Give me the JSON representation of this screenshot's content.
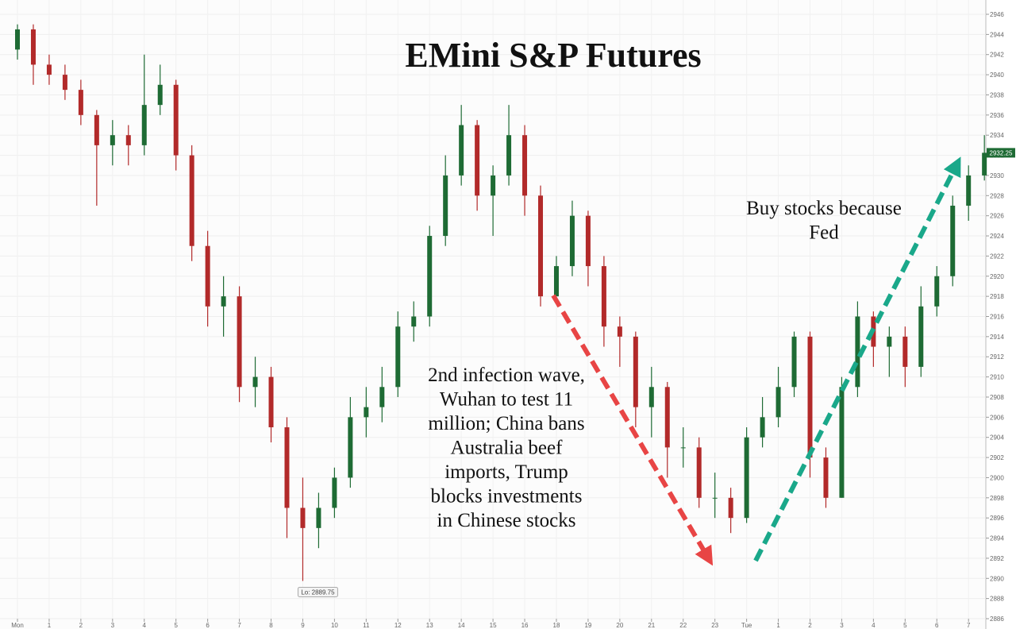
{
  "chart_data": {
    "type": "candlestick",
    "title": "EMini S&P Futures",
    "annotations": [
      {
        "lines": [
          "2nd infection wave,",
          "Wuhan to test 11",
          "million; China bans",
          "Australia beef",
          "imports, Trump",
          "blocks investments",
          "in Chinese stocks"
        ]
      },
      {
        "lines": [
          "Buy stocks because",
          "Fed"
        ]
      }
    ],
    "low_label": "Lo: 2889.75",
    "categories": [
      "Mon",
      null,
      "1",
      null,
      "2",
      null,
      "3",
      null,
      "4",
      null,
      "5",
      null,
      "6",
      null,
      "7",
      null,
      "8",
      null,
      "9",
      null,
      "10",
      null,
      "11",
      null,
      "12",
      null,
      "13",
      null,
      "14",
      null,
      "15",
      null,
      "16",
      null,
      "18",
      null,
      "19",
      null,
      "20",
      null,
      "21",
      null,
      "22",
      null,
      "23",
      null,
      "Tue",
      null,
      "1",
      null,
      "2",
      null,
      "3",
      null,
      "4",
      null,
      "5",
      null,
      "6",
      null,
      "7",
      null
    ],
    "open": [
      2942.5,
      2944.5,
      2941,
      2940,
      2938.5,
      2936,
      2933,
      2934,
      2933,
      2937,
      2939,
      2932,
      2923,
      2917,
      2918,
      2909,
      2910,
      2905,
      2897,
      2895,
      2897,
      2900,
      2906,
      2907,
      2909,
      2915,
      2916,
      2924,
      2930,
      2935,
      2928,
      2930,
      2934,
      2928,
      2918,
      2921,
      2926,
      2921,
      2915,
      2914,
      2907,
      2909,
      2903,
      2903,
      2898,
      2898,
      2896,
      2904,
      2906,
      2909,
      2914,
      2902,
      2898,
      2909,
      2916,
      2913,
      2914,
      2911,
      2917,
      2920,
      2927,
      2930
    ],
    "high": [
      2945,
      2945,
      2942,
      2941,
      2939.5,
      2936.5,
      2935.5,
      2935,
      2942,
      2941,
      2939.5,
      2933,
      2924.5,
      2920,
      2919,
      2912,
      2911,
      2906,
      2900,
      2898.5,
      2901,
      2908,
      2909,
      2911,
      2916.5,
      2917.5,
      2925,
      2932,
      2937,
      2935.5,
      2931,
      2937,
      2935,
      2929,
      2922,
      2927.5,
      2926.5,
      2922,
      2916,
      2914.5,
      2911,
      2909.5,
      2905,
      2904,
      2900.5,
      2899,
      2905,
      2908,
      2911,
      2914.5,
      2914.5,
      2903,
      2910,
      2917.5,
      2916.5,
      2915,
      2915,
      2919,
      2921,
      2928,
      2931,
      2934
    ],
    "low": [
      2941.5,
      2939,
      2939,
      2937.5,
      2935,
      2927,
      2931,
      2931,
      2932,
      2936,
      2930.5,
      2921.5,
      2915,
      2914,
      2907.5,
      2907,
      2903.5,
      2894,
      2889.75,
      2893,
      2896,
      2899,
      2904,
      2905.5,
      2908,
      2913.5,
      2915,
      2923,
      2929,
      2926.5,
      2924,
      2929,
      2926,
      2917,
      2918,
      2920,
      2919,
      2913,
      2911,
      2905,
      2904,
      2900,
      2901,
      2897,
      2896,
      2894.5,
      2895.5,
      2903,
      2905,
      2908,
      2900,
      2897,
      2898,
      2908,
      2911,
      2910,
      2909,
      2910,
      2916,
      2919,
      2925.5,
      2929.5
    ],
    "close": [
      2944.5,
      2941,
      2940,
      2938.5,
      2936,
      2933,
      2934,
      2933,
      2937,
      2939,
      2932,
      2923,
      2917,
      2918,
      2909,
      2910,
      2905,
      2897,
      2895,
      2897,
      2900,
      2906,
      2907,
      2909,
      2915,
      2916,
      2924,
      2930,
      2935,
      2928,
      2930,
      2934,
      2928,
      2918,
      2921,
      2926,
      2921,
      2915,
      2914,
      2907,
      2909,
      2903,
      2903,
      2898,
      2898,
      2896,
      2904,
      2906,
      2909,
      2914,
      2902,
      2898,
      2909,
      2916,
      2913,
      2914,
      2911,
      2917,
      2920,
      2927,
      2930,
      2932.25
    ],
    "up_color": "#1e6b34",
    "down_color": "#b22a2a",
    "ylim": [
      2886,
      2946
    ],
    "yticks": [
      2886,
      2888,
      2890,
      2892,
      2894,
      2896,
      2898,
      2900,
      2902,
      2904,
      2906,
      2908,
      2910,
      2912,
      2914,
      2916,
      2918,
      2920,
      2922,
      2924,
      2926,
      2928,
      2930,
      2932,
      2934,
      2936,
      2938,
      2940,
      2942,
      2944,
      2946
    ],
    "grid": true
  }
}
